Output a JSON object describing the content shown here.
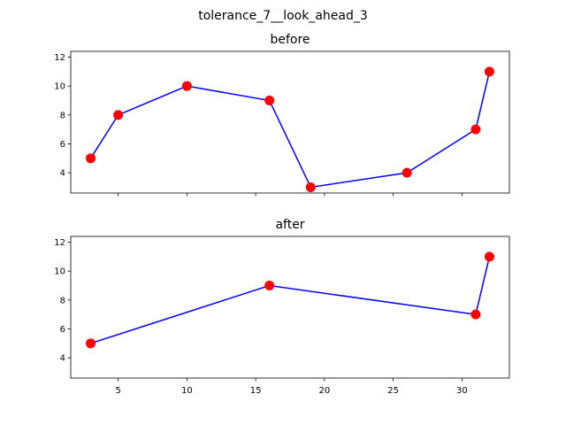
{
  "figure_title": "tolerance_7__look_ahead_3",
  "chart_data": [
    {
      "type": "line",
      "title": "before",
      "x": [
        3,
        5,
        10,
        16,
        19,
        26,
        31,
        32
      ],
      "y": [
        5,
        8,
        10,
        9,
        3,
        4,
        7,
        11
      ],
      "line_color": "#0000ff",
      "marker_color": "#ff0000",
      "xlim": [
        1.55,
        33.45
      ],
      "ylim": [
        2.6,
        12.4
      ],
      "xticks": [
        5,
        10,
        15,
        20,
        25,
        30
      ],
      "yticks": [
        4,
        6,
        8,
        10,
        12
      ],
      "show_xtick_labels": false,
      "grid": false
    },
    {
      "type": "line",
      "title": "after",
      "x": [
        3,
        16,
        31,
        32
      ],
      "y": [
        5,
        9,
        7,
        11
      ],
      "line_color": "#0000ff",
      "marker_color": "#ff0000",
      "xlim": [
        1.55,
        33.45
      ],
      "ylim": [
        2.6,
        12.4
      ],
      "xticks": [
        5,
        10,
        15,
        20,
        25,
        30
      ],
      "yticks": [
        4,
        6,
        8,
        10,
        12
      ],
      "show_xtick_labels": true,
      "grid": false
    }
  ]
}
